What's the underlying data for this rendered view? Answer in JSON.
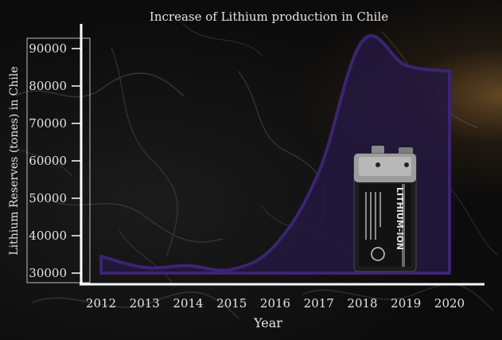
{
  "chart_data": {
    "type": "area",
    "title": "Increase of Lithium production in Chile",
    "xlabel": "Year",
    "ylabel": "Lithium Reserves (tones) in Chile",
    "categories": [
      "2012",
      "2013",
      "2014",
      "2015",
      "2016",
      "2017",
      "2018",
      "2019",
      "2020"
    ],
    "values": [
      34500,
      31500,
      32000,
      31000,
      37500,
      57000,
      92000,
      85500,
      84000
    ],
    "yticks": [
      "30000",
      "40000",
      "50000",
      "60000",
      "70000",
      "80000",
      "90000"
    ],
    "ylim": [
      30000,
      90000
    ],
    "grid": false,
    "colors": {
      "line": "#3c2472",
      "fill": "#23183f",
      "axis": "#ffffff",
      "text": "#e4e4e4"
    }
  },
  "decoration": {
    "image": "lithium-ion-battery-icon",
    "battery_text": "LITHIUM-ION"
  }
}
